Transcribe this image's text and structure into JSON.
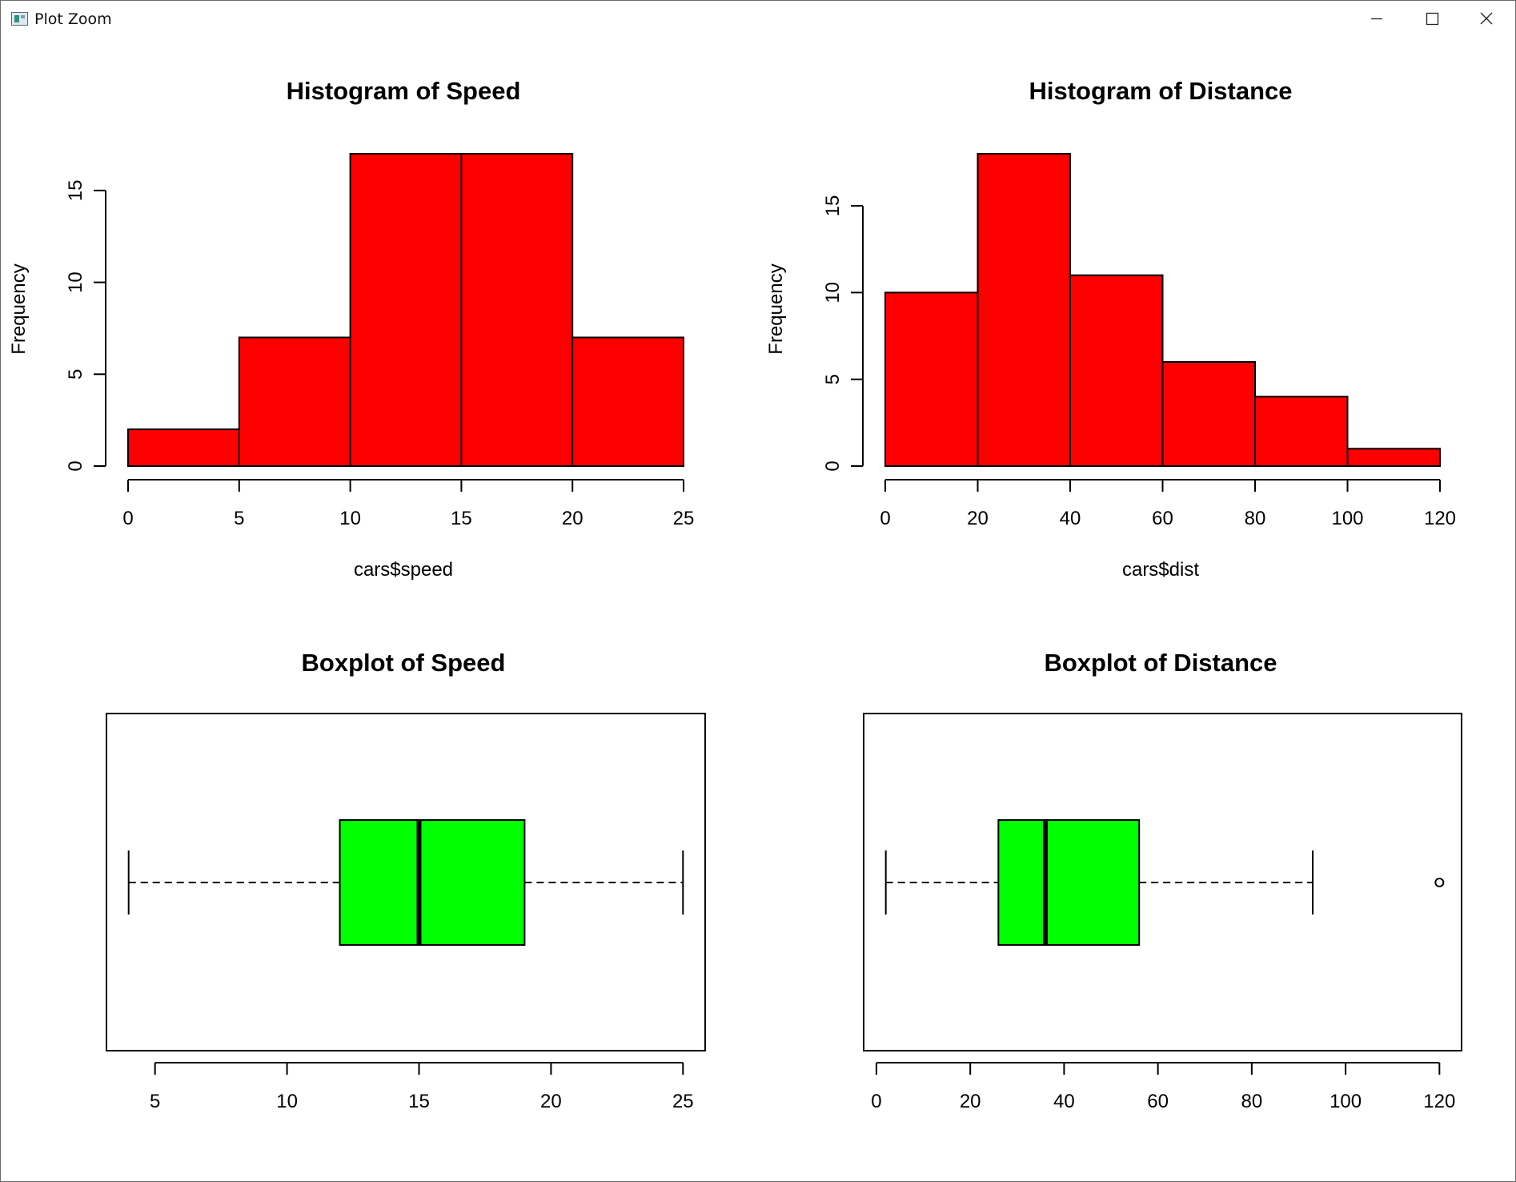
{
  "window": {
    "title": "Plot Zoom",
    "icon": "plot-window-icon",
    "controls": [
      "minimize-icon",
      "maximize-icon",
      "close-icon"
    ]
  },
  "colors": {
    "histogram_fill": "#ff0000",
    "boxplot_fill": "#00ff00",
    "stroke": "#000000"
  },
  "chart_data": [
    {
      "type": "histogram",
      "title": "Histogram of Speed",
      "xlabel": "cars$speed",
      "ylabel": "Frequency",
      "bins": [
        0,
        5,
        10,
        15,
        20,
        25
      ],
      "values": [
        2,
        7,
        17,
        17,
        7
      ],
      "xlim": [
        0,
        25
      ],
      "ylim": [
        0,
        17
      ],
      "xticks": [
        0,
        5,
        10,
        15,
        20,
        25
      ],
      "yticks": [
        0,
        5,
        10,
        15
      ]
    },
    {
      "type": "histogram",
      "title": "Histogram of Distance",
      "xlabel": "cars$dist",
      "ylabel": "Frequency",
      "bins": [
        0,
        20,
        40,
        60,
        80,
        100,
        120
      ],
      "values": [
        10,
        18,
        11,
        6,
        4,
        1
      ],
      "xlim": [
        0,
        120
      ],
      "ylim": [
        0,
        18
      ],
      "xticks": [
        0,
        20,
        40,
        60,
        80,
        100,
        120
      ],
      "yticks": [
        0,
        5,
        10,
        15
      ]
    },
    {
      "type": "boxplot",
      "title": "Boxplot of Speed",
      "orientation": "horizontal",
      "min": 4,
      "q1": 12,
      "median": 15,
      "q3": 19,
      "max": 25,
      "outliers": [],
      "xlim": [
        3.16,
        25.84
      ],
      "xticks": [
        5,
        10,
        15,
        20,
        25
      ]
    },
    {
      "type": "boxplot",
      "title": "Boxplot of Distance",
      "orientation": "horizontal",
      "min": 2,
      "q1": 26,
      "median": 36,
      "q3": 56,
      "max": 93,
      "outliers": [
        120
      ],
      "xlim": [
        -2.72,
        124.72
      ],
      "xticks": [
        0,
        20,
        40,
        60,
        80,
        100,
        120
      ]
    }
  ]
}
